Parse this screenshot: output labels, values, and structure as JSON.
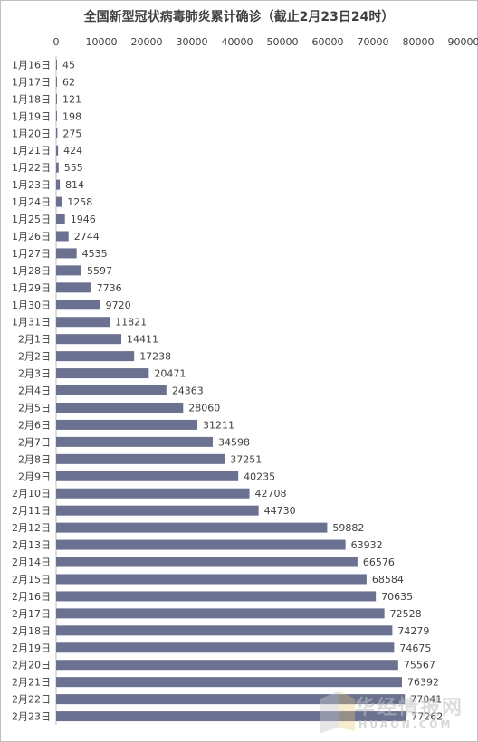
{
  "chart_data": {
    "type": "bar",
    "orientation": "horizontal",
    "title": "全国新型冠状病毒肺炎累计确诊（截止2月23日24时）",
    "xlim": [
      0,
      90000
    ],
    "xticks": [
      "0",
      "10000",
      "20000",
      "30000",
      "40000",
      "50000",
      "60000",
      "70000",
      "80000",
      "90000"
    ],
    "x_axis_position": "top",
    "grid": false,
    "legend": "none",
    "bar_color": "#6b7191",
    "categories": [
      "1月16日",
      "1月17日",
      "1月18日",
      "1月19日",
      "1月20日",
      "1月21日",
      "1月22日",
      "1月23日",
      "1月24日",
      "1月25日",
      "1月26日",
      "1月27日",
      "1月28日",
      "1月29日",
      "1月30日",
      "1月31日",
      "2月1日",
      "2月2日",
      "2月3日",
      "2月4日",
      "2月5日",
      "2月6日",
      "2月7日",
      "2月8日",
      "2月9日",
      "2月10日",
      "2月11日",
      "2月12日",
      "2月13日",
      "2月14日",
      "2月15日",
      "2月16日",
      "2月17日",
      "2月18日",
      "2月19日",
      "2月20日",
      "2月21日",
      "2月22日",
      "2月23日"
    ],
    "values": [
      45,
      62,
      121,
      198,
      275,
      424,
      555,
      814,
      1258,
      1946,
      2744,
      4535,
      5597,
      7736,
      9720,
      11821,
      14411,
      17238,
      20471,
      24363,
      28060,
      31211,
      34598,
      37251,
      40235,
      42708,
      44730,
      59882,
      63932,
      66576,
      68584,
      70635,
      72528,
      74279,
      74675,
      75567,
      76392,
      77041,
      77262
    ]
  },
  "watermark": {
    "text": "华经情报网",
    "url": "HUAON.COM",
    "icon": "huaon-logo-icon"
  }
}
